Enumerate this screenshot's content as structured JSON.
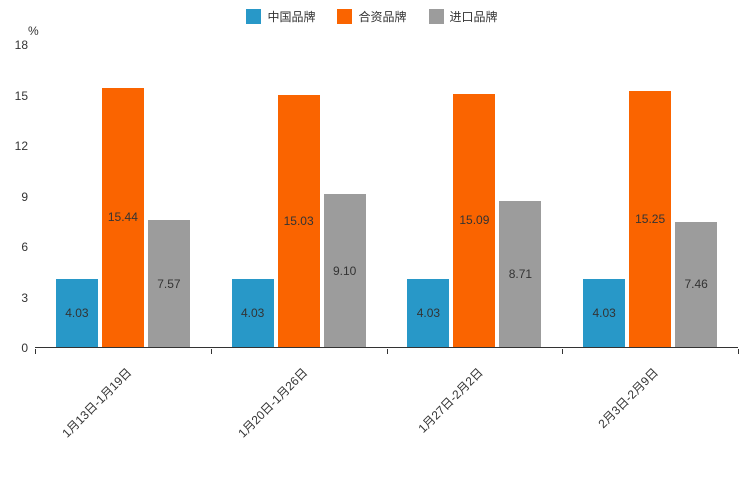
{
  "chart_data": {
    "type": "bar",
    "title": "",
    "xlabel": "",
    "ylabel": "%",
    "ylim": [
      0,
      18
    ],
    "yticks": [
      0,
      3,
      6,
      9,
      12,
      15,
      18
    ],
    "grid": false,
    "legend_position": "top",
    "categories": [
      "1月13日-1月19日",
      "1月20日-1月26日",
      "1月27日-2月2日",
      "2月3日-2月9日"
    ],
    "series": [
      {
        "key": "china-brand",
        "name": "中国品牌",
        "color": "#2898C8",
        "values": [
          4.03,
          4.03,
          4.03,
          4.03
        ],
        "labels": [
          "4.03",
          "4.03",
          "4.03",
          "4.03"
        ]
      },
      {
        "key": "joint-venture-brand",
        "name": "合资品牌",
        "color": "#FA6400",
        "values": [
          15.44,
          15.03,
          15.09,
          15.25
        ],
        "labels": [
          "15.44",
          "15.03",
          "15.09",
          "15.25"
        ]
      },
      {
        "key": "import-brand",
        "name": "进口品牌",
        "color": "#9C9C9C",
        "values": [
          7.57,
          9.1,
          8.71,
          7.46
        ],
        "labels": [
          "7.57",
          "9.10",
          "8.71",
          "7.46"
        ]
      }
    ]
  }
}
